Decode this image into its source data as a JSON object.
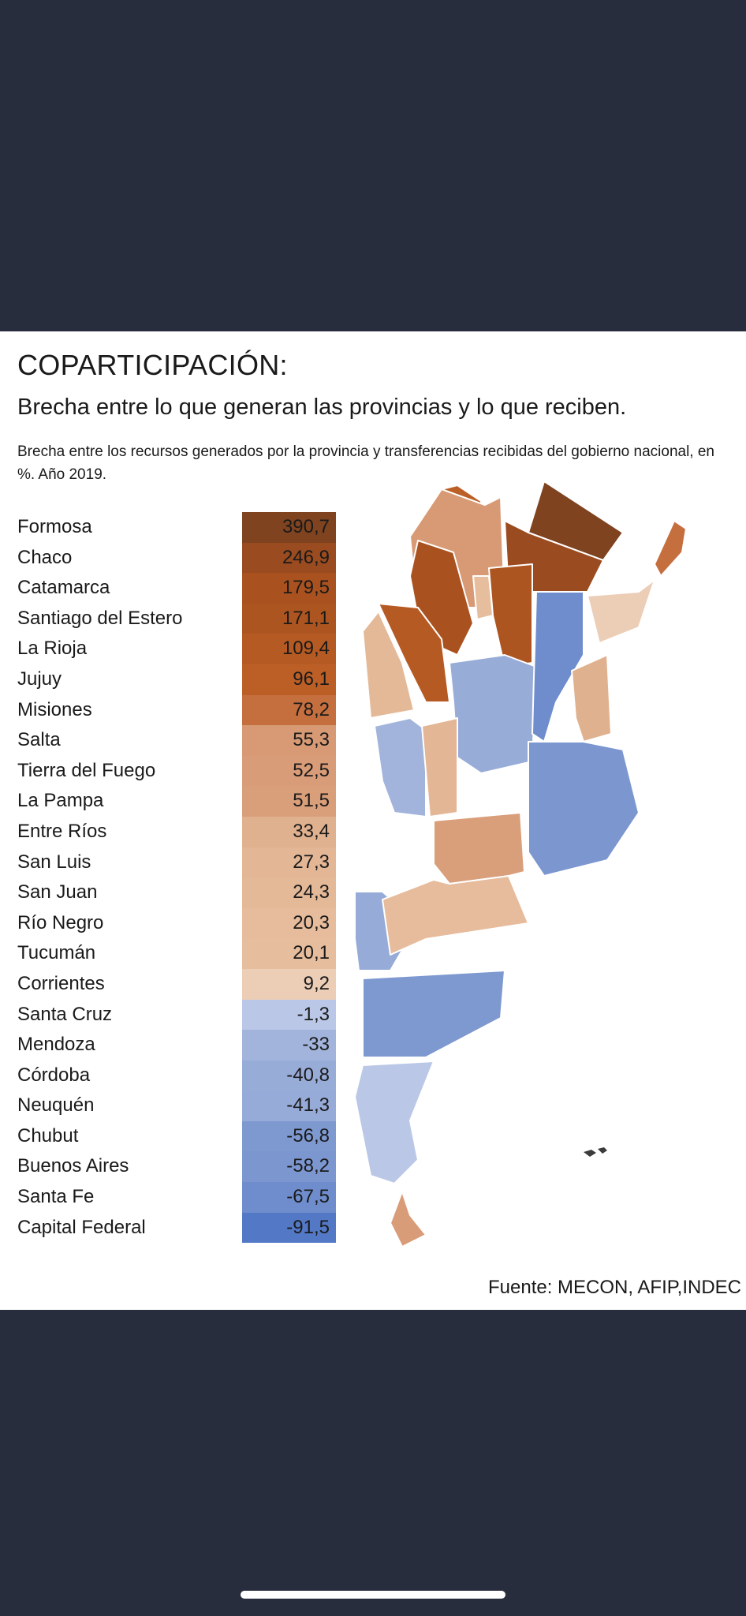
{
  "title": "COPARTICIPACIÓN:",
  "subtitle": "Brecha entre lo que generan las provincias y lo que reciben.",
  "description": "Brecha entre los recursos generados por la provincia y transferencias recibidas del gobierno nacional, en %. Año 2019.",
  "source": "Fuente: MECON, AFIP,INDEC",
  "legend_colors": {
    "highest_positive": "#8a4a20",
    "positive_mid": "#c07048",
    "low_positive": "#e8c6a8",
    "near_zero_negative": "#b6c4e4",
    "lowest_negative": "#4a72c6"
  },
  "table": {
    "rows": [
      {
        "province": "Formosa",
        "value": "390,7",
        "color": "#7f4320"
      },
      {
        "province": "Chaco",
        "value": "246,9",
        "color": "#9a4b20"
      },
      {
        "province": "Catamarca",
        "value": "179,5",
        "color": "#a9521f"
      },
      {
        "province": "Santiago del Estero",
        "value": "171,1",
        "color": "#ad5521"
      },
      {
        "province": "La Rioja",
        "value": "109,4",
        "color": "#b65a23"
      },
      {
        "province": "Jujuy",
        "value": "96,1",
        "color": "#bc5f27"
      },
      {
        "province": "Misiones",
        "value": "78,2",
        "color": "#c56f3f"
      },
      {
        "province": "Salta",
        "value": "55,3",
        "color": "#d79a75"
      },
      {
        "province": "Tierra del Fuego",
        "value": "52,5",
        "color": "#d99c78"
      },
      {
        "province": "La Pampa",
        "value": "51,5",
        "color": "#d99e7a"
      },
      {
        "province": "Entre Ríos",
        "value": "33,4",
        "color": "#e0b18f"
      },
      {
        "province": "San Luis",
        "value": "27,3",
        "color": "#e3b695"
      },
      {
        "province": "San Juan",
        "value": "24,3",
        "color": "#e4b998"
      },
      {
        "province": "Río Negro",
        "value": "20,3",
        "color": "#e6bc9c"
      },
      {
        "province": "Tucumán",
        "value": "20,1",
        "color": "#e6bd9d"
      },
      {
        "province": "Corrientes",
        "value": "9,2",
        "color": "#eccdb6"
      },
      {
        "province": "Santa Cruz",
        "value": "-1,3",
        "color": "#bac7e6"
      },
      {
        "province": "Mendoza",
        "value": "-33",
        "color": "#a2b4dc"
      },
      {
        "province": "Córdoba",
        "value": "-40,8",
        "color": "#98acd8"
      },
      {
        "province": "Neuquén",
        "value": "-41,3",
        "color": "#96abd8"
      },
      {
        "province": "Chubut",
        "value": "-56,8",
        "color": "#7e98d0"
      },
      {
        "province": "Buenos Aires",
        "value": "-58,2",
        "color": "#7c97d0"
      },
      {
        "province": "Santa Fe",
        "value": "-67,5",
        "color": "#6f8dcc"
      },
      {
        "province": "Capital Federal",
        "value": "-91,5",
        "color": "#5378c6"
      }
    ]
  }
}
